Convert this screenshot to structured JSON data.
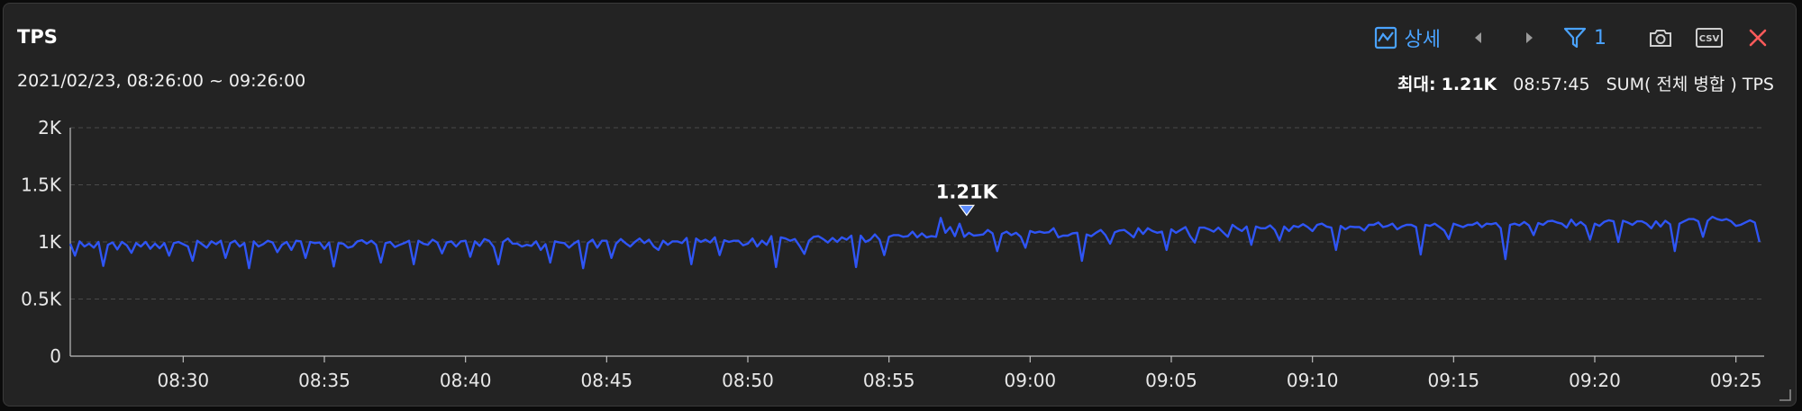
{
  "header": {
    "title": "TPS",
    "range": "2021/02/23, 08:26:00 ~ 09:26:00",
    "detail_label": "상세",
    "filter_count": "1",
    "csv_label": "CSV",
    "max_prefix": "최대:",
    "max_value": "1.21K",
    "max_time": "08:57:45",
    "metric": "SUM( 전체 병합 ) TPS"
  },
  "colors": {
    "series": "#2f55f5",
    "accent": "#4aa3ff",
    "close": "#ff5a5a",
    "marker": "#5b8cff"
  },
  "icons": [
    "line-chart-icon",
    "chevron-left-icon",
    "chevron-right-icon",
    "filter-icon",
    "camera-icon",
    "csv-icon",
    "close-icon",
    "resize-handle-icon"
  ],
  "chart_data": {
    "type": "line",
    "title": "TPS",
    "x_range": [
      "08:26:00",
      "09:26:00"
    ],
    "x_ticks": [
      "08:30",
      "08:35",
      "08:40",
      "08:45",
      "08:50",
      "08:55",
      "09:00",
      "09:05",
      "09:10",
      "09:15",
      "09:20",
      "09:25"
    ],
    "y_ticks": [
      "0",
      "0.5K",
      "1K",
      "1.5K",
      "2K"
    ],
    "ylim": [
      0,
      2000
    ],
    "grid": true,
    "annotation": {
      "label": "1.21K",
      "time": "08:57:45",
      "value": 1210
    },
    "series": [
      {
        "sample_interval_sec": 10,
        "values": [
          985,
          880,
          1005,
          960,
          985,
          950,
          1000,
          790,
          975,
          995,
          935,
          1000,
          970,
          905,
          990,
          960,
          1000,
          940,
          985,
          945,
          990,
          880,
          990,
          1000,
          980,
          960,
          835,
          1010,
          980,
          950,
          1005,
          980,
          1010,
          860,
          990,
          1010,
          960,
          990,
          770,
          1005,
          960,
          980,
          1010,
          995,
          910,
          975,
          1000,
          930,
          1010,
          1005,
          860,
          1000,
          990,
          995,
          940,
          995,
          785,
          990,
          985,
          950,
          960,
          1005,
          1015,
          985,
          1010,
          975,
          820,
          990,
          1000,
          955,
          975,
          990,
          1010,
          805,
          1010,
          985,
          975,
          1020,
          995,
          900,
          995,
          1005,
          960,
          1005,
          1010,
          870,
          1005,
          965,
          1025,
          1010,
          955,
          805,
          1000,
          1030,
          985,
          985,
          960,
          975,
          965,
          1005,
          930,
          980,
          820,
          1005,
          995,
          990,
          950,
          985,
          1010,
          770,
          990,
          1020,
          950,
          1010,
          1010,
          860,
          985,
          1025,
          990,
          960,
          1000,
          1030,
          990,
          1020,
          960,
          930,
          1010,
          975,
          1005,
          1005,
          990,
          1035,
          805,
          1030,
          1000,
          1020,
          995,
          1040,
          885,
          1015,
          1000,
          1010,
          1010,
          970,
          985,
          1030,
          960,
          1010,
          975,
          1050,
          780,
          1040,
          1030,
          1010,
          1025,
          965,
          895,
          1010,
          1045,
          1050,
          1025,
          995,
          1035,
          1000,
          1040,
          1020,
          1055,
          780,
          1055,
          1000,
          1020,
          1065,
          1020,
          885,
          1045,
          1060,
          1060,
          1045,
          1050,
          1090,
          1040,
          1075,
          1040,
          1050,
          1045,
          1210,
          1080,
          1130,
          1050,
          1160,
          1045,
          1080,
          1055,
          1060,
          1065,
          1105,
          1075,
          920,
          1070,
          1090,
          1060,
          1080,
          1045,
          950,
          1095,
          1080,
          1090,
          1080,
          1085,
          1120,
          1040,
          1055,
          1055,
          1075,
          1080,
          835,
          1065,
          1050,
          1080,
          1105,
          1060,
          985,
          1085,
          1100,
          1105,
          1075,
          1040,
          1120,
          1070,
          1120,
          1095,
          1080,
          1090,
          930,
          1110,
          1080,
          1105,
          1130,
          1050,
          995,
          1125,
          1125,
          1110,
          1090,
          1125,
          1085,
          1045,
          1150,
          1120,
          1095,
          1135,
          975,
          1135,
          1120,
          1120,
          1145,
          1105,
          1015,
          1135,
          1095,
          1140,
          1130,
          1155,
          1130,
          1095,
          1150,
          1160,
          1135,
          1125,
          930,
          1140,
          1110,
          1135,
          1130,
          1130,
          1100,
          1150,
          1150,
          1170,
          1130,
          1140,
          1160,
          1110,
          1135,
          1150,
          1150,
          1130,
          890,
          1150,
          1140,
          1160,
          1130,
          1100,
          1025,
          1160,
          1145,
          1130,
          1150,
          1150,
          1170,
          1130,
          1160,
          1155,
          1165,
          1120,
          850,
          1150,
          1160,
          1145,
          1175,
          1145,
          1060,
          1165,
          1150,
          1180,
          1185,
          1170,
          1160,
          1125,
          1195,
          1145,
          1175,
          1140,
          1020,
          1160,
          1140,
          1175,
          1190,
          1180,
          1000,
          1185,
          1170,
          1150,
          1180,
          1180,
          1160,
          1120,
          1180,
          1135,
          1185,
          1155,
          920,
          1160,
          1180,
          1200,
          1200,
          1180,
          1045,
          1185,
          1220,
          1200,
          1190,
          1200,
          1180,
          1140,
          1150,
          1170,
          1190,
          1170,
          1000
        ]
      }
    ]
  }
}
